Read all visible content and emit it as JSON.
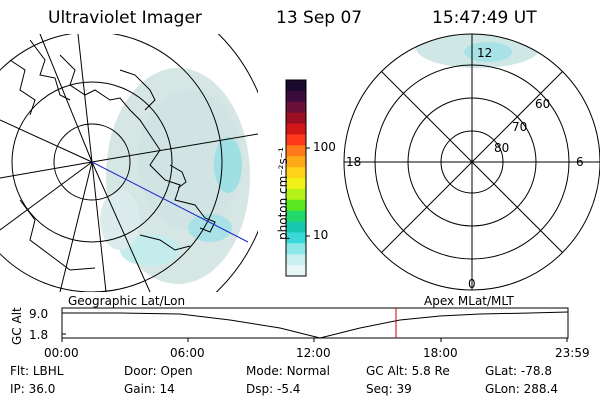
{
  "header": {
    "instrument": "Ultraviolet Imager",
    "date": "13 Sep 07",
    "time": "15:47:49 UT"
  },
  "colorbar": {
    "unit_label": "photon cm⁻²s⁻¹",
    "ticks": [
      "100",
      "10"
    ],
    "colors": [
      "#1a0a2e",
      "#3a0a3a",
      "#6a0f3a",
      "#9a0f22",
      "#d01818",
      "#ff3a1a",
      "#ff7a1a",
      "#ffa818",
      "#ffd21a",
      "#f0f21a",
      "#b6f21a",
      "#5ae820",
      "#22d86a",
      "#1ac8b0",
      "#3ad8d8",
      "#8ce8e8",
      "#c8f0f0",
      "#e8f6f6"
    ]
  },
  "polar_plot": {
    "mlt_labels": [
      "12",
      "18",
      "6",
      "0"
    ],
    "lat_labels": [
      "60",
      "70",
      "80"
    ]
  },
  "altitude_panel": {
    "left_title": "Geographic Lat/Lon",
    "right_title": "Apex  MLat/MLT",
    "y_axis_label": "GC Alt",
    "y_ticks": [
      "9.0",
      "1.8"
    ],
    "x_ticks": [
      "00:00",
      "06:00",
      "12:00",
      "18:00",
      "23:59"
    ],
    "marker_color": "#cc0000"
  },
  "info": {
    "row1": [
      {
        "label": "Flt:",
        "value": "LBHL"
      },
      {
        "label": "Door:",
        "value": "Open"
      },
      {
        "label": "Mode:",
        "value": "Normal"
      },
      {
        "label": "GC Alt:",
        "value": "5.8 Re"
      },
      {
        "label": "GLat:",
        "value": "-78.8"
      }
    ],
    "row2": [
      {
        "label": "IP:",
        "value": "36.0"
      },
      {
        "label": "Gain:",
        "value": "14"
      },
      {
        "label": "Dsp:",
        "value": "-5.4"
      },
      {
        "label": "Seq:",
        "value": "39"
      },
      {
        "label": "GLon:",
        "value": "288.4"
      }
    ]
  }
}
